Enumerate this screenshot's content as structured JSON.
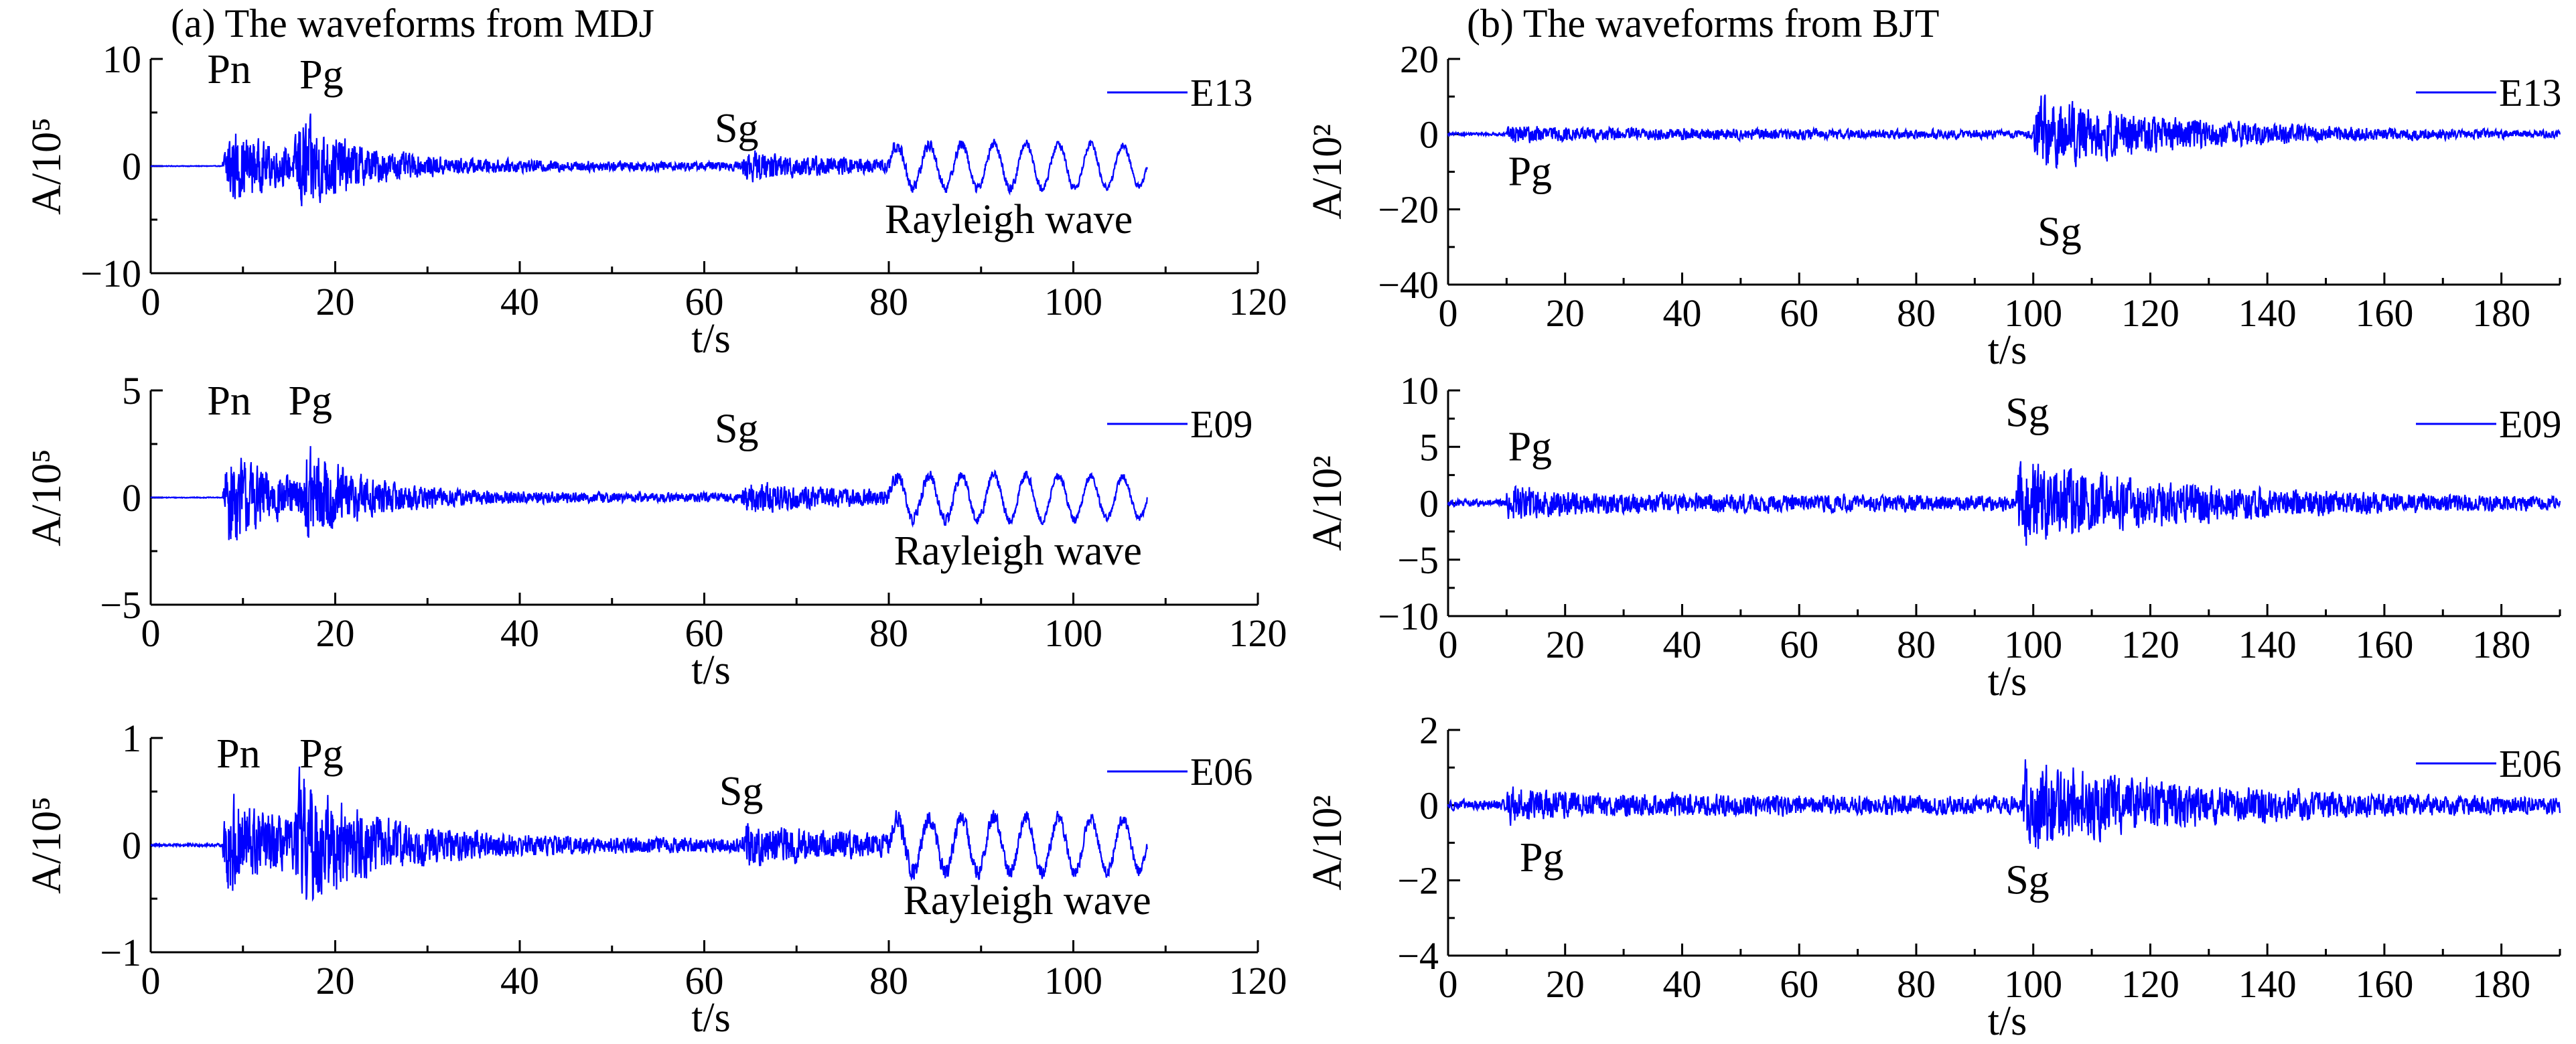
{
  "figure": {
    "title_a": "(a) The waveforms from MDJ",
    "title_b": "(b) The waveforms from BJT",
    "wave_color": "#0000ff"
  },
  "chart_data": [
    {
      "type": "line",
      "id": "mdj-e13",
      "station": "MDJ",
      "legend": "E13",
      "xlabel": "t/s",
      "ylabel": "A/10⁵",
      "xlim": [
        0,
        120
      ],
      "ylim": [
        -10,
        10
      ],
      "xticks": [
        0,
        20,
        40,
        60,
        80,
        100,
        120
      ],
      "xtick_labels": [
        "0",
        "20",
        "40",
        "60",
        "80",
        "100",
        "120"
      ],
      "yticks": [
        -10,
        0,
        10
      ],
      "ytick_labels": [
        "−10",
        "0",
        "10"
      ],
      "annotations": [
        {
          "text": "Pn",
          "x": 8.5,
          "y": 9
        },
        {
          "text": "Pg",
          "x": 18.5,
          "y": 8.5
        },
        {
          "text": "Sg",
          "x": 63.5,
          "y": 3.5
        },
        {
          "text": "Rayleigh wave",
          "x": 93,
          "y": -5
        }
      ],
      "envelope": {
        "t_start": 0,
        "t_end": 108,
        "phases": [
          {
            "t": 7.8,
            "amp": 5.5,
            "decay": 6
          },
          {
            "t": 15.5,
            "amp": 6.5,
            "decay": 6
          },
          {
            "t": 64,
            "amp": 1.8,
            "decay": 12
          },
          {
            "t": 80,
            "amp": 1.6,
            "decay": 40,
            "period": 3.5
          }
        ],
        "noise": 0.05,
        "coda": 1.0
      }
    },
    {
      "type": "line",
      "id": "mdj-e09",
      "station": "MDJ",
      "legend": "E09",
      "xlabel": "t/s",
      "ylabel": "A/10⁵",
      "xlim": [
        0,
        120
      ],
      "ylim": [
        -5,
        5
      ],
      "xticks": [
        0,
        20,
        40,
        60,
        80,
        100,
        120
      ],
      "xtick_labels": [
        "0",
        "20",
        "40",
        "60",
        "80",
        "100",
        "120"
      ],
      "yticks": [
        -5,
        0,
        5
      ],
      "ytick_labels": [
        "−5",
        "0",
        "5"
      ],
      "annotations": [
        {
          "text": "Pn",
          "x": 8.5,
          "y": 4.5
        },
        {
          "text": "Pg",
          "x": 17.3,
          "y": 4.5
        },
        {
          "text": "Sg",
          "x": 63.5,
          "y": 3.2
        },
        {
          "text": "Rayleigh wave",
          "x": 94,
          "y": -2.5
        }
      ],
      "envelope": {
        "t_start": 0,
        "t_end": 108,
        "phases": [
          {
            "t": 7.8,
            "amp": 3.6,
            "decay": 6
          },
          {
            "t": 16.5,
            "amp": 3.0,
            "decay": 6
          },
          {
            "t": 64,
            "amp": 1.0,
            "decay": 12
          },
          {
            "t": 80,
            "amp": 0.8,
            "decay": 40,
            "period": 3.5
          }
        ],
        "noise": 0.03,
        "coda": 0.5
      }
    },
    {
      "type": "line",
      "id": "mdj-e06",
      "station": "MDJ",
      "legend": "E06",
      "xlabel": "t/s",
      "ylabel": "A/10⁵",
      "xlim": [
        0,
        120
      ],
      "ylim": [
        -1,
        1
      ],
      "xticks": [
        0,
        20,
        40,
        60,
        80,
        100,
        120
      ],
      "xtick_labels": [
        "0",
        "20",
        "40",
        "60",
        "80",
        "100",
        "120"
      ],
      "yticks": [
        -1,
        0,
        1
      ],
      "ytick_labels": [
        "−1",
        "0",
        "1"
      ],
      "annotations": [
        {
          "text": "Pn",
          "x": 9.5,
          "y": 0.85
        },
        {
          "text": "Pg",
          "x": 18.5,
          "y": 0.85
        },
        {
          "text": "Sg",
          "x": 64,
          "y": 0.5
        },
        {
          "text": "Rayleigh wave",
          "x": 95,
          "y": -0.52
        }
      ],
      "envelope": {
        "t_start": 0,
        "t_end": 108,
        "phases": [
          {
            "t": 7.8,
            "amp": 0.75,
            "decay": 6
          },
          {
            "t": 15.5,
            "amp": 0.8,
            "decay": 8
          },
          {
            "t": 64,
            "amp": 0.25,
            "decay": 12
          },
          {
            "t": 80,
            "amp": 0.2,
            "decay": 40,
            "period": 3.5
          }
        ],
        "noise": 0.02,
        "coda": 0.14
      }
    },
    {
      "type": "line",
      "id": "bjt-e13",
      "station": "BJT",
      "legend": "E13",
      "xlabel": "t/s",
      "ylabel": "A/10²",
      "xlim": [
        0,
        190
      ],
      "ylim": [
        -40,
        20
      ],
      "xticks": [
        0,
        20,
        40,
        60,
        80,
        100,
        120,
        140,
        160,
        180
      ],
      "xtick_labels": [
        "0",
        "20",
        "40",
        "60",
        "80",
        "100",
        "120",
        "140",
        "160",
        "180"
      ],
      "yticks": [
        -40,
        -20,
        0,
        20
      ],
      "ytick_labels": [
        "−40",
        "−20",
        "0",
        "20"
      ],
      "annotations": [
        {
          "text": "Pg",
          "x": 14,
          "y": -10
        },
        {
          "text": "Sg",
          "x": 104.5,
          "y": -26
        }
      ],
      "envelope": {
        "t_start": 0,
        "t_end": 190,
        "phases": [
          {
            "t": 10,
            "amp": 1.5,
            "decay": 5
          },
          {
            "t": 100,
            "amp": 15,
            "decay": 25
          }
        ],
        "noise": 0.6,
        "coda": 2.5
      }
    },
    {
      "type": "line",
      "id": "bjt-e09",
      "station": "BJT",
      "legend": "E09",
      "xlabel": "t/s",
      "ylabel": "A/10²",
      "xlim": [
        0,
        190
      ],
      "ylim": [
        -10,
        10
      ],
      "xticks": [
        0,
        20,
        40,
        60,
        80,
        100,
        120,
        140,
        160,
        180
      ],
      "xtick_labels": [
        "0",
        "20",
        "40",
        "60",
        "80",
        "100",
        "120",
        "140",
        "160",
        "180"
      ],
      "yticks": [
        -10,
        -5,
        0,
        5,
        10
      ],
      "ytick_labels": [
        "−10",
        "−5",
        "0",
        "5",
        "10"
      ],
      "annotations": [
        {
          "text": "Pg",
          "x": 14,
          "y": 5
        },
        {
          "text": "Sg",
          "x": 99,
          "y": 8
        }
      ],
      "envelope": {
        "t_start": 0,
        "t_end": 190,
        "phases": [
          {
            "t": 10,
            "amp": 1.5,
            "decay": 5
          },
          {
            "t": 97,
            "amp": 5.5,
            "decay": 30
          }
        ],
        "noise": 0.5,
        "coda": 1.2
      }
    },
    {
      "type": "line",
      "id": "bjt-e06",
      "station": "BJT",
      "legend": "E06",
      "xlabel": "t/s",
      "ylabel": "A/10²",
      "xlim": [
        0,
        190
      ],
      "ylim": [
        -4,
        2
      ],
      "xticks": [
        0,
        20,
        40,
        60,
        80,
        100,
        120,
        140,
        160,
        180
      ],
      "xtick_labels": [
        "0",
        "20",
        "40",
        "60",
        "80",
        "100",
        "120",
        "140",
        "160",
        "180"
      ],
      "yticks": [
        -4,
        -2,
        0,
        2
      ],
      "ytick_labels": [
        "−4",
        "−2",
        "0",
        "2"
      ],
      "annotations": [
        {
          "text": "Pg",
          "x": 16,
          "y": -1.4
        },
        {
          "text": "Sg",
          "x": 99,
          "y": -2
        }
      ],
      "envelope": {
        "t_start": 0,
        "t_end": 190,
        "phases": [
          {
            "t": 10,
            "amp": 0.35,
            "decay": 5
          },
          {
            "t": 98,
            "amp": 1.7,
            "decay": 28
          }
        ],
        "noise": 0.22,
        "coda": 0.35
      }
    }
  ]
}
